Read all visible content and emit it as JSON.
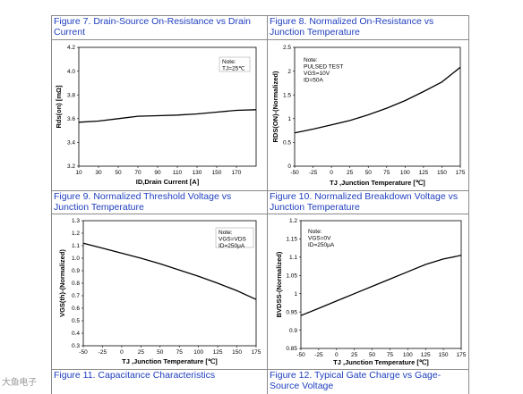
{
  "captions": [
    "Figure 7. Drain-Source On-Resistance vs Drain Current",
    "Figure 8. Normalized On-Resistance vs Junction Temperature",
    "Figure 9. Normalized Threshold Voltage vs Junction Temperature",
    "Figure 10. Normalized Breakdown Voltage vs Junction Temperature",
    "Figure 11. Capacitance Characteristics",
    "Figure 12. Typical Gate Charge vs Gage-Source Voltage"
  ],
  "watermark": "大鱼电子",
  "chart_data": [
    {
      "type": "line",
      "title": "Figure 7. Drain-Source On-Resistance vs Drain Current",
      "xlabel": "ID,Drain Current [A]",
      "ylabel": "Rds(on) [mΩ]",
      "xlim": [
        10,
        190
      ],
      "ylim": [
        3.2,
        4.2
      ],
      "x_ticks": [
        10,
        30,
        50,
        70,
        90,
        110,
        130,
        150,
        170
      ],
      "y_ticks": [
        3.2,
        3.4,
        3.6,
        3.8,
        4.0,
        4.2
      ],
      "y_tick_labels": [
        "3.2",
        "3.4",
        "3.6",
        "3.8",
        "4.0",
        "4.2"
      ],
      "note": [
        "Note:",
        "TJ=25℃"
      ],
      "series": [
        {
          "x": [
            10,
            30,
            50,
            70,
            90,
            110,
            130,
            150,
            170,
            190
          ],
          "y": [
            3.57,
            3.58,
            3.6,
            3.62,
            3.625,
            3.63,
            3.64,
            3.655,
            3.67,
            3.675
          ]
        }
      ]
    },
    {
      "type": "line",
      "title": "Figure 8. Normalized On-Resistance vs Junction Temperature",
      "xlabel": "TJ ,Junction Temperature [℃]",
      "ylabel": "RDS(ON)-(Normalized)",
      "xlim": [
        -50,
        175
      ],
      "ylim": [
        0,
        2.5
      ],
      "x_ticks": [
        -50,
        -25,
        0,
        25,
        50,
        75,
        100,
        125,
        150,
        175
      ],
      "y_ticks": [
        0,
        0.5,
        1,
        1.5,
        2,
        2.5
      ],
      "y_tick_labels": [
        "0",
        "0.5",
        "1",
        "1.5",
        "2",
        "2.5"
      ],
      "note": [
        "Note:",
        "PULSED TEST",
        "VGS=10V",
        "ID=50A"
      ],
      "series": [
        {
          "x": [
            -50,
            -25,
            0,
            25,
            50,
            75,
            100,
            125,
            150,
            175
          ],
          "y": [
            0.7,
            0.78,
            0.87,
            0.96,
            1.08,
            1.22,
            1.38,
            1.57,
            1.77,
            2.08
          ]
        }
      ]
    },
    {
      "type": "line",
      "title": "Figure 9. Normalized Threshold Voltage vs Junction Temperature",
      "xlabel": "TJ ,Junction Temperature [℃]",
      "ylabel": "VGS(th)-(Normalized)",
      "xlim": [
        -50,
        175
      ],
      "ylim": [
        0.3,
        1.3
      ],
      "x_ticks": [
        -50,
        -25,
        0,
        25,
        50,
        75,
        100,
        125,
        150,
        175
      ],
      "y_ticks": [
        0.3,
        0.4,
        0.5,
        0.6,
        0.7,
        0.8,
        0.9,
        1.0,
        1.1,
        1.2,
        1.3
      ],
      "y_tick_labels": [
        "0.3",
        "0.4",
        "0.5",
        "0.6",
        "0.7",
        "0.8",
        "0.9",
        "1.0",
        "1.1",
        "1.2",
        "1.3"
      ],
      "note": [
        "Note:",
        "VGS=VDS",
        "ID=250μA"
      ],
      "series": [
        {
          "x": [
            -50,
            -25,
            0,
            25,
            50,
            75,
            100,
            125,
            150,
            175
          ],
          "y": [
            1.12,
            1.08,
            1.04,
            1.0,
            0.955,
            0.905,
            0.855,
            0.8,
            0.74,
            0.67
          ]
        }
      ]
    },
    {
      "type": "line",
      "title": "Figure 10. Normalized Breakdown Voltage vs Junction Temperature",
      "xlabel": "TJ ,Junction Temperature [℃]",
      "ylabel": "BVDSS-(Normalized)",
      "xlim": [
        -50,
        175
      ],
      "ylim": [
        0.85,
        1.2
      ],
      "x_ticks": [
        -50,
        -25,
        0,
        25,
        50,
        75,
        100,
        125,
        150,
        175
      ],
      "y_ticks": [
        0.85,
        0.9,
        0.95,
        1,
        1.05,
        1.1,
        1.15,
        1.2
      ],
      "y_tick_labels": [
        "0.85",
        "0.9",
        "0.95",
        "1",
        "1.05",
        "1.1",
        "1.15",
        "1.2"
      ],
      "note": [
        "Note:",
        "VGS=0V",
        "ID=250μA"
      ],
      "series": [
        {
          "x": [
            -50,
            -25,
            0,
            25,
            50,
            75,
            100,
            125,
            150,
            175
          ],
          "y": [
            0.94,
            0.96,
            0.98,
            1.0,
            1.02,
            1.04,
            1.06,
            1.08,
            1.095,
            1.105
          ]
        }
      ]
    }
  ]
}
